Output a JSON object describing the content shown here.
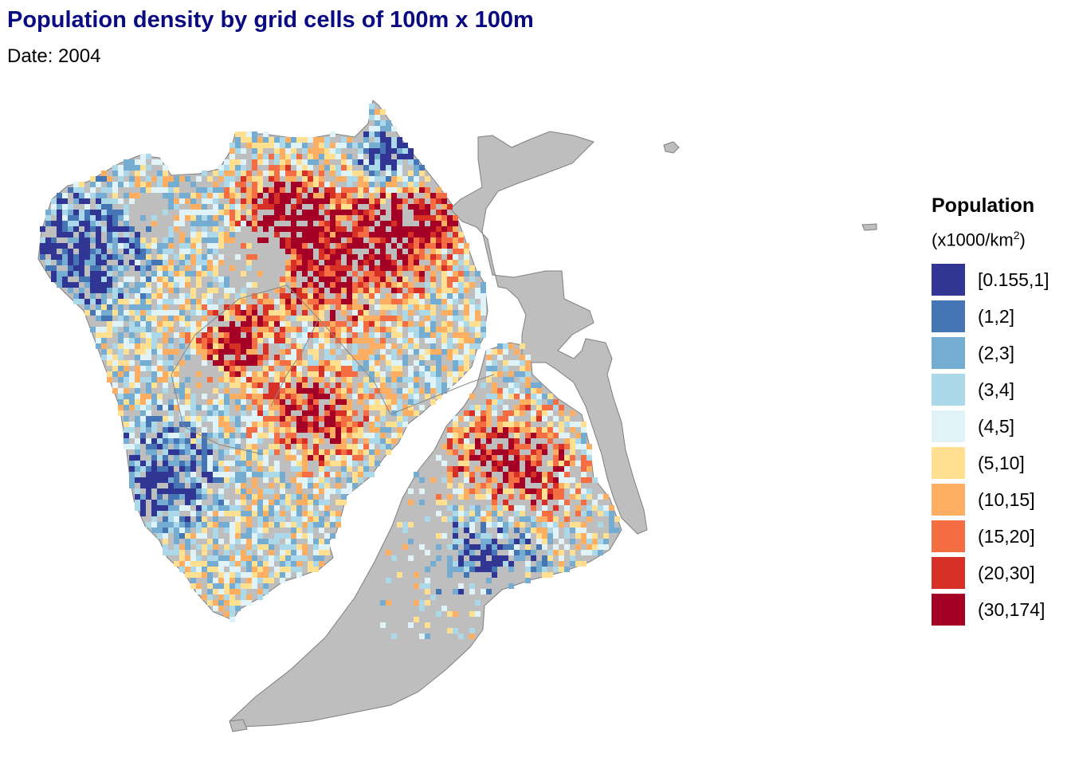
{
  "title": "Population density by grid cells of 100m x 100m",
  "subtitle": "Date: 2004",
  "legend": {
    "title": "Population",
    "unit_prefix": "(x1000/km",
    "unit_exp": "2",
    "unit_suffix": ")",
    "items": [
      {
        "label": "[0.155,1]",
        "color": "#313695"
      },
      {
        "label": "(1,2]",
        "color": "#4575b4"
      },
      {
        "label": "(2,3]",
        "color": "#74add1"
      },
      {
        "label": "(3,4]",
        "color": "#abd9e9"
      },
      {
        "label": "(4,5]",
        "color": "#e0f3f8"
      },
      {
        "label": "(5,10]",
        "color": "#fee090"
      },
      {
        "label": "(10,15]",
        "color": "#fdae61"
      },
      {
        "label": "(15,20]",
        "color": "#f46d43"
      },
      {
        "label": "(20,30]",
        "color": "#d73027"
      },
      {
        "label": "(30,174]",
        "color": "#a50026"
      }
    ]
  },
  "map": {
    "land_color": "#bebebe",
    "border_color": "#7f7f7f"
  }
}
